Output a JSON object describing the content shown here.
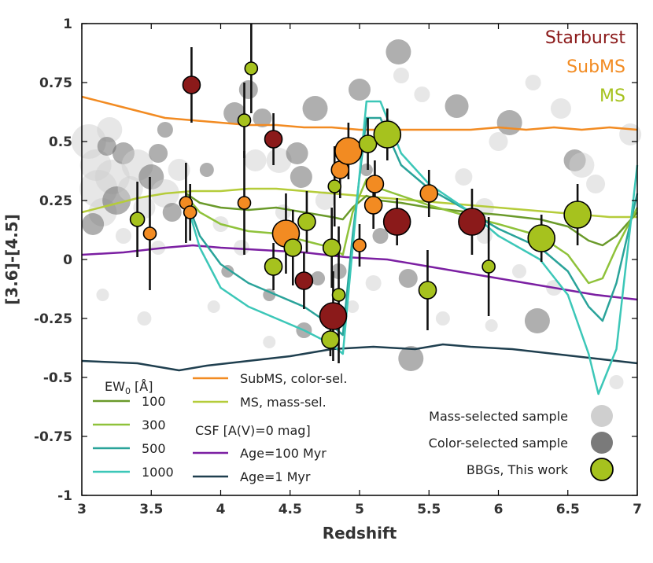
{
  "chart_data": {
    "type": "scatter",
    "xlabel": "Redshift",
    "ylabel": "[3.6]-[4.5]",
    "xlim": [
      3,
      7
    ],
    "ylim": [
      -1,
      1
    ],
    "x_ticks": [
      "3",
      "3.5",
      "4",
      "4.5",
      "5",
      "5.5",
      "6",
      "6.5",
      "7"
    ],
    "y_ticks": [
      "1",
      "0.75",
      "0.5",
      "0.25",
      "0",
      "-0.25",
      "-0.5",
      "-0.75",
      "-1"
    ],
    "category_labels": [
      {
        "name": "Starburst",
        "color": "#8b1a1a"
      },
      {
        "name": "SubMS",
        "color": "#f28b22"
      },
      {
        "name": "MS",
        "color": "#a6c21e"
      }
    ],
    "legend_ew": {
      "title": "EW",
      "title_sub": "0",
      "title_unit": " [Å]",
      "items": [
        {
          "name": "100",
          "color": "#6a9a2a"
        },
        {
          "name": "300",
          "color": "#8fc23a"
        },
        {
          "name": "500",
          "color": "#2aa39a"
        },
        {
          "name": "1000",
          "color": "#3cc7b8"
        }
      ]
    },
    "legend_model": {
      "items": [
        {
          "name": "SubMS, color-sel.",
          "color": "#f28b22"
        },
        {
          "name": "MS, mass-sel.",
          "color": "#b5cc3a"
        }
      ],
      "csf_title": "CSF [A(V)=0 mag]",
      "csf_items": [
        {
          "name": "Age=100 Myr",
          "color": "#7b1fa2"
        },
        {
          "name": "Age=1 Myr",
          "color": "#1f3f4f"
        }
      ]
    },
    "legend_samples": [
      {
        "name": "Mass-selected sample",
        "color": "#cfcfcf",
        "edge": "none"
      },
      {
        "name": "Color-selected sample",
        "color": "#7a7a7a",
        "edge": "none"
      },
      {
        "name": "BBGs, This work",
        "color": "#a6c21e",
        "edge": "#000000"
      }
    ],
    "series": [
      {
        "name": "SubMS, color-sel.",
        "color": "#f28b22",
        "x": [
          3.0,
          3.2,
          3.4,
          3.6,
          3.8,
          4.0,
          4.2,
          4.4,
          4.6,
          4.8,
          5.0,
          5.2,
          5.4,
          5.6,
          5.8,
          6.0,
          6.2,
          6.4,
          6.6,
          6.8,
          7.0
        ],
        "y": [
          0.69,
          0.66,
          0.63,
          0.6,
          0.59,
          0.58,
          0.57,
          0.57,
          0.56,
          0.56,
          0.55,
          0.55,
          0.55,
          0.55,
          0.55,
          0.56,
          0.55,
          0.56,
          0.55,
          0.56,
          0.55
        ]
      },
      {
        "name": "MS, mass-sel.",
        "color": "#b5cc3a",
        "x": [
          3.0,
          3.2,
          3.4,
          3.6,
          3.8,
          4.0,
          4.2,
          4.4,
          4.6,
          4.8,
          5.0,
          5.2,
          5.4,
          5.6,
          5.8,
          6.0,
          6.2,
          6.4,
          6.6,
          6.8,
          7.0
        ],
        "y": [
          0.2,
          0.23,
          0.26,
          0.28,
          0.29,
          0.29,
          0.3,
          0.3,
          0.29,
          0.28,
          0.27,
          0.26,
          0.25,
          0.24,
          0.23,
          0.22,
          0.21,
          0.2,
          0.19,
          0.18,
          0.18
        ]
      },
      {
        "name": "Age=100 Myr",
        "color": "#7b1fa2",
        "x": [
          3.0,
          3.3,
          3.6,
          3.8,
          4.0,
          4.3,
          4.6,
          4.9,
          5.2,
          5.5,
          5.8,
          6.1,
          6.4,
          6.7,
          7.0
        ],
        "y": [
          0.02,
          0.03,
          0.05,
          0.06,
          0.05,
          0.04,
          0.03,
          0.01,
          0.0,
          -0.03,
          -0.06,
          -0.09,
          -0.12,
          -0.15,
          -0.17
        ]
      },
      {
        "name": "Age=1 Myr",
        "color": "#1f3f4f",
        "x": [
          3.0,
          3.4,
          3.7,
          3.9,
          4.2,
          4.5,
          4.8,
          5.1,
          5.4,
          5.6,
          5.8,
          6.1,
          6.4,
          6.7,
          7.0
        ],
        "y": [
          -0.43,
          -0.44,
          -0.47,
          -0.45,
          -0.43,
          -0.41,
          -0.38,
          -0.37,
          -0.38,
          -0.36,
          -0.37,
          -0.38,
          -0.4,
          -0.42,
          -0.44
        ]
      },
      {
        "name": "EW 100",
        "color": "#6a9a2a",
        "x": [
          3.75,
          3.85,
          4.0,
          4.2,
          4.4,
          4.6,
          4.8,
          4.88,
          4.95,
          5.05,
          5.15,
          5.3,
          5.5,
          5.8,
          6.0,
          6.3,
          6.5,
          6.65,
          6.75,
          6.85,
          7.0
        ],
        "y": [
          0.28,
          0.24,
          0.22,
          0.21,
          0.22,
          0.2,
          0.18,
          0.17,
          0.22,
          0.27,
          0.25,
          0.24,
          0.22,
          0.2,
          0.19,
          0.17,
          0.14,
          0.08,
          0.06,
          0.1,
          0.2
        ]
      },
      {
        "name": "EW 300",
        "color": "#8fc23a",
        "x": [
          3.75,
          3.85,
          4.0,
          4.2,
          4.4,
          4.6,
          4.8,
          4.88,
          4.95,
          5.05,
          5.15,
          5.3,
          5.5,
          5.8,
          6.0,
          6.3,
          6.5,
          6.65,
          6.75,
          6.85,
          7.0
        ],
        "y": [
          0.27,
          0.2,
          0.15,
          0.12,
          0.11,
          0.08,
          0.05,
          0.02,
          0.2,
          0.34,
          0.3,
          0.27,
          0.23,
          0.18,
          0.15,
          0.1,
          0.02,
          -0.1,
          -0.08,
          0.05,
          0.22
        ]
      },
      {
        "name": "EW 500",
        "color": "#2aa39a",
        "x": [
          3.75,
          3.85,
          4.0,
          4.2,
          4.4,
          4.6,
          4.8,
          4.88,
          4.95,
          5.05,
          5.15,
          5.3,
          5.5,
          5.8,
          6.0,
          6.3,
          6.5,
          6.65,
          6.75,
          6.85,
          7.0
        ],
        "y": [
          0.26,
          0.1,
          -0.02,
          -0.1,
          -0.15,
          -0.2,
          -0.28,
          -0.32,
          0.1,
          0.6,
          0.6,
          0.4,
          0.3,
          0.2,
          0.13,
          0.05,
          -0.05,
          -0.2,
          -0.26,
          -0.1,
          0.28
        ]
      },
      {
        "name": "EW 1000",
        "color": "#3cc7b8",
        "x": [
          3.75,
          3.85,
          4.0,
          4.2,
          4.4,
          4.6,
          4.8,
          4.88,
          4.95,
          5.05,
          5.15,
          5.3,
          5.5,
          5.8,
          6.0,
          6.3,
          6.5,
          6.65,
          6.72,
          6.85,
          7.0
        ],
        "y": [
          0.25,
          0.05,
          -0.12,
          -0.2,
          -0.25,
          -0.3,
          -0.36,
          -0.4,
          0.05,
          0.67,
          0.67,
          0.45,
          0.32,
          0.2,
          0.1,
          0.0,
          -0.15,
          -0.4,
          -0.57,
          -0.38,
          0.4
        ]
      }
    ],
    "bbg_points": [
      {
        "z": 3.4,
        "c": 0.17,
        "err": 0.16,
        "size": 9,
        "cat": "MS"
      },
      {
        "z": 3.49,
        "c": 0.11,
        "err": 0.24,
        "size": 8,
        "cat": "SubMS"
      },
      {
        "z": 3.75,
        "c": 0.24,
        "err": 0.17,
        "size": 8,
        "cat": "SubMS"
      },
      {
        "z": 3.78,
        "c": 0.2,
        "err": 0.12,
        "size": 8,
        "cat": "SubMS"
      },
      {
        "z": 3.79,
        "c": 0.74,
        "err": 0.16,
        "size": 11,
        "cat": "Starburst"
      },
      {
        "z": 4.17,
        "c": 0.24,
        "err": 0.22,
        "size": 8,
        "cat": "SubMS"
      },
      {
        "z": 4.17,
        "c": 0.59,
        "err": 0.16,
        "size": 8,
        "cat": "MS"
      },
      {
        "z": 4.22,
        "c": 0.81,
        "err": 0.19,
        "size": 8,
        "cat": "MS"
      },
      {
        "z": 4.38,
        "c": -0.03,
        "err": 0.1,
        "size": 11,
        "cat": "MS"
      },
      {
        "z": 4.38,
        "c": 0.51,
        "err": 0.11,
        "size": 11,
        "cat": "Starburst"
      },
      {
        "z": 4.47,
        "c": 0.11,
        "err": 0.17,
        "size": 17,
        "cat": "SubMS"
      },
      {
        "z": 4.52,
        "c": 0.05,
        "err": 0.16,
        "size": 11,
        "cat": "MS"
      },
      {
        "z": 4.6,
        "c": -0.09,
        "err": 0.12,
        "size": 11,
        "cat": "Starburst"
      },
      {
        "z": 4.62,
        "c": 0.16,
        "err": 0.13,
        "size": 11,
        "cat": "MS"
      },
      {
        "z": 4.79,
        "c": -0.34,
        "err": 0.07,
        "size": 11,
        "cat": "MS"
      },
      {
        "z": 4.8,
        "c": 0.05,
        "err": 0.17,
        "size": 11,
        "cat": "MS"
      },
      {
        "z": 4.81,
        "c": -0.24,
        "err": 0.19,
        "size": 17,
        "cat": "Starburst"
      },
      {
        "z": 4.82,
        "c": 0.31,
        "err": 0.17,
        "size": 8,
        "cat": "MS"
      },
      {
        "z": 4.85,
        "c": -0.15,
        "err": 0.29,
        "size": 8,
        "cat": "MS"
      },
      {
        "z": 4.86,
        "c": 0.38,
        "err": 0.12,
        "size": 11,
        "cat": "SubMS"
      },
      {
        "z": 4.92,
        "c": 0.46,
        "err": 0.12,
        "size": 17,
        "cat": "SubMS"
      },
      {
        "z": 5.0,
        "c": 0.06,
        "err": 0.09,
        "size": 8,
        "cat": "SubMS"
      },
      {
        "z": 5.06,
        "c": 0.49,
        "err": 0.11,
        "size": 11,
        "cat": "MS"
      },
      {
        "z": 5.1,
        "c": 0.23,
        "err": 0.1,
        "size": 11,
        "cat": "SubMS"
      },
      {
        "z": 5.11,
        "c": 0.32,
        "err": 0.1,
        "size": 11,
        "cat": "SubMS"
      },
      {
        "z": 5.2,
        "c": 0.53,
        "err": 0.11,
        "size": 17,
        "cat": "MS"
      },
      {
        "z": 5.27,
        "c": 0.16,
        "err": 0.1,
        "size": 17,
        "cat": "Starburst"
      },
      {
        "z": 5.49,
        "c": -0.13,
        "err": 0.17,
        "size": 11,
        "cat": "MS"
      },
      {
        "z": 5.5,
        "c": 0.28,
        "err": 0.1,
        "size": 11,
        "cat": "SubMS"
      },
      {
        "z": 5.81,
        "c": 0.16,
        "err": 0.14,
        "size": 17,
        "cat": "Starburst"
      },
      {
        "z": 5.93,
        "c": -0.03,
        "err": 0.21,
        "size": 8,
        "cat": "MS"
      },
      {
        "z": 6.31,
        "c": 0.09,
        "err": 0.1,
        "size": 17,
        "cat": "MS"
      },
      {
        "z": 6.57,
        "c": 0.19,
        "err": 0.13,
        "size": 17,
        "cat": "MS"
      }
    ],
    "background_points": [
      {
        "z": 3.05,
        "c": 0.5,
        "size": 22,
        "s": "mass"
      },
      {
        "z": 3.1,
        "c": 0.4,
        "size": 20,
        "s": "mass"
      },
      {
        "z": 3.12,
        "c": 0.3,
        "size": 24,
        "s": "mass"
      },
      {
        "z": 3.15,
        "c": 0.2,
        "size": 18,
        "s": "mass"
      },
      {
        "z": 3.2,
        "c": 0.55,
        "size": 16,
        "s": "mass"
      },
      {
        "z": 3.22,
        "c": 0.35,
        "size": 22,
        "s": "mass"
      },
      {
        "z": 3.25,
        "c": 0.25,
        "size": 18,
        "s": "color"
      },
      {
        "z": 3.3,
        "c": 0.45,
        "size": 14,
        "s": "color"
      },
      {
        "z": 3.35,
        "c": 0.3,
        "size": 16,
        "s": "mass"
      },
      {
        "z": 3.4,
        "c": 0.4,
        "size": 20,
        "s": "mass"
      },
      {
        "z": 3.45,
        "c": 0.22,
        "size": 14,
        "s": "mass"
      },
      {
        "z": 3.5,
        "c": 0.35,
        "size": 16,
        "s": "color"
      },
      {
        "z": 3.55,
        "c": 0.45,
        "size": 12,
        "s": "color"
      },
      {
        "z": 3.6,
        "c": 0.28,
        "size": 18,
        "s": "mass"
      },
      {
        "z": 3.65,
        "c": 0.2,
        "size": 12,
        "s": "color"
      },
      {
        "z": 3.7,
        "c": 0.38,
        "size": 14,
        "s": "mass"
      },
      {
        "z": 3.08,
        "c": 0.15,
        "size": 14,
        "s": "color"
      },
      {
        "z": 3.18,
        "c": 0.48,
        "size": 12,
        "s": "color"
      },
      {
        "z": 3.3,
        "c": 0.1,
        "size": 10,
        "s": "mass"
      },
      {
        "z": 3.55,
        "c": 0.05,
        "size": 9,
        "s": "mass"
      },
      {
        "z": 3.15,
        "c": -0.15,
        "size": 8,
        "s": "mass"
      },
      {
        "z": 3.6,
        "c": 0.55,
        "size": 10,
        "s": "color"
      },
      {
        "z": 3.9,
        "c": 0.38,
        "size": 9,
        "s": "color"
      },
      {
        "z": 4.0,
        "c": 0.15,
        "size": 10,
        "s": "mass"
      },
      {
        "z": 4.05,
        "c": -0.05,
        "size": 8,
        "s": "color"
      },
      {
        "z": 4.1,
        "c": 0.62,
        "size": 14,
        "s": "color"
      },
      {
        "z": 4.2,
        "c": 0.72,
        "size": 12,
        "s": "color"
      },
      {
        "z": 4.25,
        "c": 0.42,
        "size": 14,
        "s": "mass"
      },
      {
        "z": 4.3,
        "c": 0.6,
        "size": 12,
        "s": "color"
      },
      {
        "z": 4.35,
        "c": -0.15,
        "size": 8,
        "s": "color"
      },
      {
        "z": 4.42,
        "c": 0.42,
        "size": 16,
        "s": "mass"
      },
      {
        "z": 4.55,
        "c": 0.45,
        "size": 14,
        "s": "color"
      },
      {
        "z": 4.58,
        "c": 0.35,
        "size": 14,
        "s": "color"
      },
      {
        "z": 4.68,
        "c": 0.64,
        "size": 16,
        "s": "color"
      },
      {
        "z": 4.7,
        "c": -0.08,
        "size": 9,
        "s": "color"
      },
      {
        "z": 4.75,
        "c": 0.25,
        "size": 12,
        "s": "mass"
      },
      {
        "z": 4.85,
        "c": -0.05,
        "size": 10,
        "s": "color"
      },
      {
        "z": 4.95,
        "c": -0.2,
        "size": 8,
        "s": "mass"
      },
      {
        "z": 4.6,
        "c": -0.3,
        "size": 10,
        "s": "color"
      },
      {
        "z": 4.35,
        "c": -0.35,
        "size": 8,
        "s": "mass"
      },
      {
        "z": 5.0,
        "c": 0.72,
        "size": 14,
        "s": "color"
      },
      {
        "z": 5.05,
        "c": 0.38,
        "size": 8,
        "s": "color"
      },
      {
        "z": 5.2,
        "c": 0.55,
        "size": 14,
        "s": "mass"
      },
      {
        "z": 5.28,
        "c": 0.88,
        "size": 16,
        "s": "color"
      },
      {
        "z": 5.3,
        "c": 0.78,
        "size": 10,
        "s": "mass"
      },
      {
        "z": 5.35,
        "c": -0.08,
        "size": 12,
        "s": "color"
      },
      {
        "z": 5.37,
        "c": -0.42,
        "size": 16,
        "s": "color"
      },
      {
        "z": 5.45,
        "c": 0.7,
        "size": 10,
        "s": "mass"
      },
      {
        "z": 5.7,
        "c": 0.65,
        "size": 15,
        "s": "color"
      },
      {
        "z": 5.75,
        "c": 0.35,
        "size": 11,
        "s": "mass"
      },
      {
        "z": 5.9,
        "c": 0.22,
        "size": 12,
        "s": "mass"
      },
      {
        "z": 5.95,
        "c": -0.28,
        "size": 8,
        "s": "mass"
      },
      {
        "z": 6.0,
        "c": 0.5,
        "size": 12,
        "s": "mass"
      },
      {
        "z": 6.08,
        "c": 0.58,
        "size": 16,
        "s": "color"
      },
      {
        "z": 6.25,
        "c": 0.75,
        "size": 10,
        "s": "mass"
      },
      {
        "z": 6.28,
        "c": -0.26,
        "size": 16,
        "s": "color"
      },
      {
        "z": 6.45,
        "c": 0.64,
        "size": 13,
        "s": "mass"
      },
      {
        "z": 6.55,
        "c": 0.42,
        "size": 14,
        "s": "color"
      },
      {
        "z": 6.6,
        "c": 0.4,
        "size": 16,
        "s": "mass"
      },
      {
        "z": 6.7,
        "c": 0.32,
        "size": 12,
        "s": "mass"
      },
      {
        "z": 6.85,
        "c": -0.52,
        "size": 9,
        "s": "mass"
      },
      {
        "z": 6.95,
        "c": 0.53,
        "size": 14,
        "s": "mass"
      },
      {
        "z": 5.6,
        "c": -0.25,
        "size": 9,
        "s": "mass"
      },
      {
        "z": 5.1,
        "c": -0.1,
        "size": 10,
        "s": "mass"
      },
      {
        "z": 4.15,
        "c": 0.05,
        "size": 10,
        "s": "mass"
      },
      {
        "z": 3.95,
        "c": -0.2,
        "size": 8,
        "s": "mass"
      },
      {
        "z": 6.15,
        "c": -0.05,
        "size": 9,
        "s": "mass"
      },
      {
        "z": 6.4,
        "c": -0.12,
        "size": 10,
        "s": "mass"
      },
      {
        "z": 5.15,
        "c": 0.1,
        "size": 10,
        "s": "color"
      },
      {
        "z": 3.45,
        "c": -0.25,
        "size": 9,
        "s": "mass"
      },
      {
        "z": 5.9,
        "c": 0.1,
        "size": 10,
        "s": "mass"
      },
      {
        "z": 4.45,
        "c": 0.2,
        "size": 10,
        "s": "mass"
      }
    ]
  }
}
